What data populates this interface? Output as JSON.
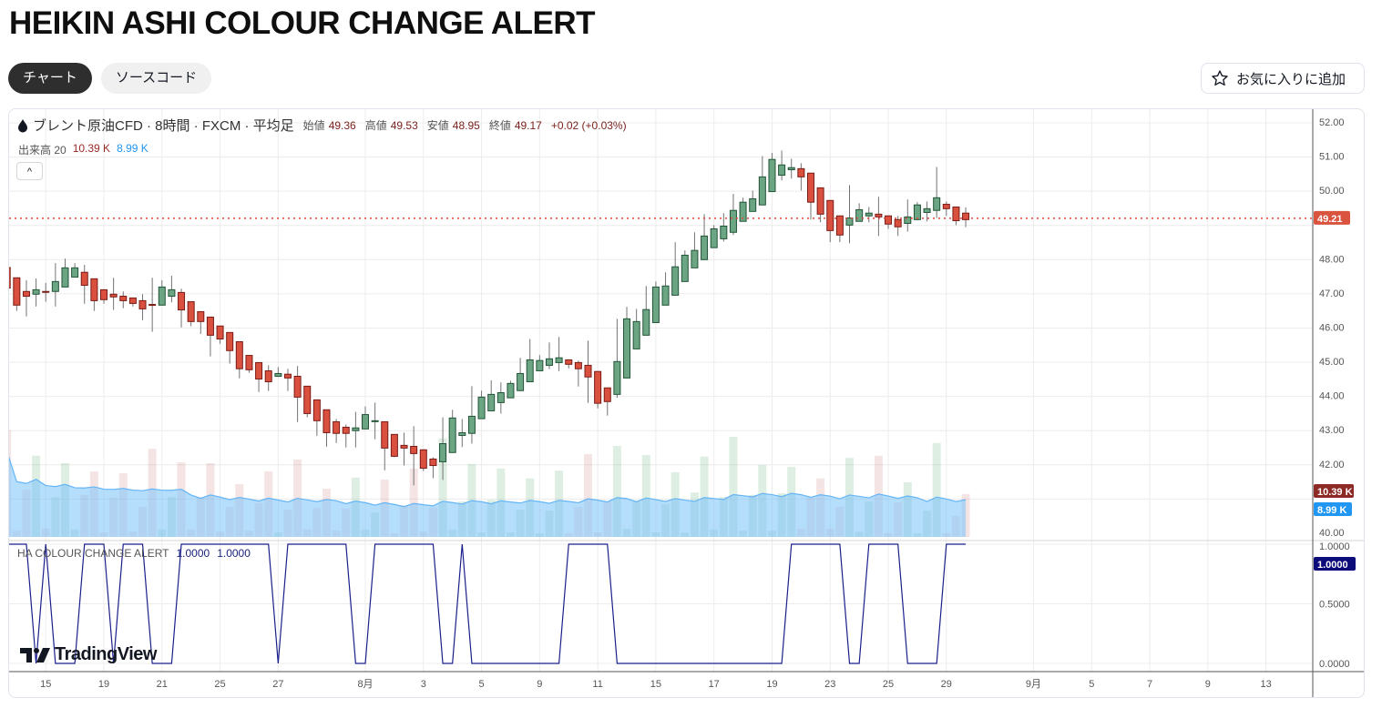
{
  "page_title": "HEIKIN ASHI COLOUR CHANGE ALERT",
  "tabs": [
    {
      "label": "チャート",
      "active": true
    },
    {
      "label": "ソースコード",
      "active": false
    }
  ],
  "favorite_button": {
    "label": "お気に入りに追加",
    "icon": "star-icon"
  },
  "legend": {
    "symbol": "ブレント原油CFD · 8時間 · FXCM · 平均足",
    "open_label": "始値",
    "open": "49.36",
    "high_label": "高値",
    "high": "49.53",
    "low_label": "安値",
    "low": "48.95",
    "close_label": "終値",
    "close": "49.17",
    "change": "+0.02 (+0.03%)"
  },
  "volume_legend": {
    "label": "出来高 20",
    "volume": "10.39 K",
    "ma": "8.99 K"
  },
  "indicator_legend": {
    "name": "HA COLOUR CHANGE ALERT",
    "value1": "1.0000",
    "value2": "1.0000"
  },
  "watermark": "TradingView",
  "colors": {
    "up": "#6ba583",
    "up_border": "#225437",
    "down": "#d9503f",
    "down_border": "#7a1b15",
    "wick": "#737375",
    "price_line": "#e0453a",
    "volume_label": "#8e2a25",
    "ma_label": "#2196f3",
    "alert_line": "#1a1f8c",
    "alert_label": "#0b0b7a"
  },
  "chart_data": {
    "type": "candlestick",
    "price_axis": {
      "ticks": [
        "52.00",
        "51.00",
        "50.00",
        "48.00",
        "47.00",
        "46.00",
        "45.00",
        "44.00",
        "43.00",
        "42.00",
        "40.00"
      ],
      "range": [
        40,
        52
      ]
    },
    "current_price": "49.21",
    "volume_label": "10.39 K",
    "volume_ma_label": "8.99 K",
    "indicator_axis": {
      "ticks": [
        "1.0000",
        "0.5000",
        "0.0000"
      ],
      "current": "1.0000"
    },
    "time_labels": [
      {
        "text": "15",
        "index": 4
      },
      {
        "text": "19",
        "index": 10
      },
      {
        "text": "21",
        "index": 16
      },
      {
        "text": "25",
        "index": 22
      },
      {
        "text": "27",
        "index": 28
      },
      {
        "text": "8月",
        "index": 37
      },
      {
        "text": "3",
        "index": 43
      },
      {
        "text": "5",
        "index": 49
      },
      {
        "text": "9",
        "index": 55
      },
      {
        "text": "11",
        "index": 61
      },
      {
        "text": "15",
        "index": 67
      },
      {
        "text": "17",
        "index": 73
      },
      {
        "text": "19",
        "index": 79
      },
      {
        "text": "23",
        "index": 85
      },
      {
        "text": "25",
        "index": 91
      },
      {
        "text": "29",
        "index": 97
      },
      {
        "text": "9月",
        "index": 106
      },
      {
        "text": "5",
        "index": 112
      },
      {
        "text": "7",
        "index": 118
      },
      {
        "text": "9",
        "index": 124
      },
      {
        "text": "13",
        "index": 130
      }
    ],
    "ohlc": [
      [
        47.77,
        47.85,
        47.17,
        47.17
      ],
      [
        47.47,
        47.47,
        46.5,
        46.67
      ],
      [
        47.07,
        47.4,
        46.34,
        46.93
      ],
      [
        46.99,
        47.45,
        46.63,
        47.12
      ],
      [
        47.07,
        47.32,
        46.77,
        47.065
      ],
      [
        47.07,
        47.9,
        46.63,
        47.36
      ],
      [
        47.2,
        48.03,
        47.2,
        47.76
      ],
      [
        47.49,
        47.9,
        47.49,
        47.76
      ],
      [
        47.63,
        47.85,
        46.71,
        47.25
      ],
      [
        47.44,
        47.44,
        46.5,
        46.8
      ],
      [
        47.12,
        47.12,
        46.71,
        46.83
      ],
      [
        46.99,
        47.47,
        46.53,
        46.91
      ],
      [
        46.93,
        47.07,
        46.58,
        46.8
      ],
      [
        46.88,
        46.88,
        46.63,
        46.72
      ],
      [
        46.8,
        46.99,
        46.23,
        46.56
      ],
      [
        46.69,
        47.47,
        45.89,
        46.685
      ],
      [
        46.67,
        47.4,
        46.67,
        47.2
      ],
      [
        46.93,
        47.53,
        46.75,
        47.12
      ],
      [
        47.04,
        47.15,
        46.02,
        46.53
      ],
      [
        46.77,
        46.77,
        46.05,
        46.19
      ],
      [
        46.48,
        46.48,
        45.83,
        46.19
      ],
      [
        46.32,
        46.32,
        45.17,
        45.79
      ],
      [
        46.06,
        46.06,
        45.54,
        45.68
      ],
      [
        45.87,
        45.87,
        44.96,
        45.34
      ],
      [
        45.6,
        45.6,
        44.53,
        44.81
      ],
      [
        45.2,
        45.2,
        44.69,
        44.78
      ],
      [
        44.99,
        44.99,
        44.13,
        44.51
      ],
      [
        44.75,
        44.91,
        44.16,
        44.43
      ],
      [
        44.59,
        44.86,
        44.57,
        44.67
      ],
      [
        44.65,
        44.81,
        44.16,
        44.54
      ],
      [
        44.59,
        44.89,
        43.25,
        43.98
      ],
      [
        44.3,
        44.3,
        43.39,
        43.5
      ],
      [
        43.9,
        43.9,
        42.85,
        43.29
      ],
      [
        43.61,
        43.61,
        42.53,
        42.94
      ],
      [
        43.26,
        43.34,
        42.64,
        42.92
      ],
      [
        43.1,
        43.18,
        42.51,
        42.92
      ],
      [
        43.0,
        43.55,
        42.51,
        43.08
      ],
      [
        43.05,
        43.71,
        43.05,
        43.47
      ],
      [
        43.285,
        43.82,
        42.75,
        43.29
      ],
      [
        43.26,
        43.26,
        41.84,
        42.49
      ],
      [
        42.89,
        42.89,
        42.22,
        42.25
      ],
      [
        42.57,
        42.94,
        41.98,
        42.49
      ],
      [
        42.54,
        43.13,
        41.4,
        42.33
      ],
      [
        42.44,
        42.44,
        41.82,
        41.9
      ],
      [
        42.17,
        42.22,
        41.61,
        41.98
      ],
      [
        42.09,
        43.39,
        41.56,
        42.62
      ],
      [
        42.36,
        43.61,
        42.36,
        43.37
      ],
      [
        42.86,
        43.34,
        42.52,
        42.94
      ],
      [
        42.92,
        44.3,
        42.62,
        43.42
      ],
      [
        43.35,
        44.17,
        43.35,
        43.98
      ],
      [
        43.58,
        44.47,
        43.58,
        44.06
      ],
      [
        43.82,
        44.41,
        43.5,
        44.11
      ],
      [
        43.96,
        44.46,
        43.96,
        44.38
      ],
      [
        44.17,
        45.13,
        44.17,
        44.67
      ],
      [
        44.43,
        45.68,
        44.43,
        45.07
      ],
      [
        44.75,
        45.21,
        44.75,
        45.05
      ],
      [
        44.91,
        45.58,
        44.8,
        45.1
      ],
      [
        44.99,
        45.74,
        44.74,
        45.13
      ],
      [
        45.07,
        45.07,
        44.82,
        44.94
      ],
      [
        44.99,
        45.05,
        44.29,
        44.81
      ],
      [
        44.91,
        45.63,
        43.81,
        44.57
      ],
      [
        44.73,
        44.73,
        43.65,
        43.8
      ],
      [
        44.25,
        44.25,
        43.44,
        43.85
      ],
      [
        44.06,
        46.27,
        43.96,
        45.02
      ],
      [
        44.54,
        46.62,
        44.54,
        46.27
      ],
      [
        45.39,
        46.56,
        45.39,
        46.19
      ],
      [
        45.79,
        47.23,
        45.79,
        46.54
      ],
      [
        46.16,
        47.36,
        46.16,
        47.2
      ],
      [
        46.67,
        47.63,
        46.67,
        47.23
      ],
      [
        46.96,
        48.51,
        46.96,
        47.79
      ],
      [
        47.36,
        48.27,
        47.36,
        48.13
      ],
      [
        47.76,
        48.8,
        47.76,
        48.27
      ],
      [
        48.0,
        49.33,
        48.0,
        48.69
      ],
      [
        48.35,
        49.01,
        48.35,
        48.9
      ],
      [
        48.61,
        49.36,
        48.53,
        48.98
      ],
      [
        48.8,
        49.92,
        48.72,
        49.44
      ],
      [
        49.12,
        49.81,
        49.12,
        49.68
      ],
      [
        49.41,
        50.02,
        49.41,
        49.78
      ],
      [
        49.6,
        51.03,
        49.6,
        50.42
      ],
      [
        49.99,
        51.12,
        49.99,
        50.93
      ],
      [
        50.47,
        51.19,
        50.32,
        50.77
      ],
      [
        50.63,
        50.95,
        50.37,
        50.69
      ],
      [
        50.66,
        50.82,
        50.02,
        50.42
      ],
      [
        50.53,
        50.53,
        49.17,
        49.68
      ],
      [
        50.1,
        50.1,
        49.09,
        49.33
      ],
      [
        49.73,
        49.73,
        48.51,
        48.85
      ],
      [
        49.28,
        49.28,
        48.51,
        48.72
      ],
      [
        49.01,
        50.18,
        48.48,
        49.22
      ],
      [
        49.12,
        49.65,
        49.12,
        49.46
      ],
      [
        49.28,
        49.54,
        49.09,
        49.36
      ],
      [
        49.33,
        49.84,
        48.69,
        49.25
      ],
      [
        49.28,
        49.28,
        48.9,
        49.04
      ],
      [
        49.17,
        49.28,
        48.69,
        48.96
      ],
      [
        49.06,
        49.76,
        48.82,
        49.25
      ],
      [
        49.17,
        49.68,
        49.17,
        49.6
      ],
      [
        49.38,
        49.7,
        49.12,
        49.49
      ],
      [
        49.44,
        50.71,
        49.22,
        49.81
      ],
      [
        49.62,
        49.7,
        49.28,
        49.49
      ],
      [
        49.54,
        49.54,
        49.01,
        49.14
      ],
      [
        49.36,
        49.53,
        48.95,
        49.17
      ]
    ],
    "volume_k": [
      25.9,
      1.5,
      11.5,
      19.7,
      2.0,
      9.7,
      17.9,
      1.8,
      10.2,
      15.9,
      1.1,
      9.5,
      15.5,
      1.3,
      7.3,
      21.4,
      1.8,
      9.7,
      18.1,
      1.8,
      9.7,
      17.9,
      1.3,
      7.3,
      12.8,
      1.5,
      8.2,
      15.9,
      1.1,
      6.6,
      18.8,
      1.8,
      7.1,
      11.7,
      1.5,
      6.9,
      14.4,
      1.8,
      6.0,
      13.9,
      0.9,
      7.7,
      16.6,
      1.3,
      7.1,
      23.9,
      1.8,
      8.6,
      17.7,
      1.1,
      9.0,
      16.6,
      1.1,
      6.6,
      14.2,
      0.9,
      6.4,
      16.1,
      0.9,
      7.3,
      20.1,
      1.1,
      8.6,
      22.1,
      2.0,
      8.8,
      19.9,
      1.1,
      8.0,
      15.7,
      1.1,
      10.8,
      19.5,
      1.8,
      9.7,
      24.3,
      1.5,
      10.2,
      17.5,
      1.5,
      10.6,
      17.0,
      2.0,
      9.7,
      14.2,
      2.0,
      7.3,
      19.2,
      1.3,
      8.6,
      19.7,
      0.9,
      8.4,
      13.3,
      0.9,
      6.4,
      22.8,
      0.9,
      5.1,
      10.4
    ],
    "volume_ma_period": 20,
    "alert": [
      1,
      1,
      1,
      0,
      1,
      0,
      0,
      0,
      1,
      1,
      1,
      0,
      1,
      1,
      1,
      0,
      0,
      0,
      1,
      1,
      1,
      1,
      1,
      1,
      1,
      1,
      1,
      1,
      0,
      1,
      1,
      1,
      1,
      1,
      1,
      1,
      0,
      0,
      1,
      1,
      1,
      1,
      1,
      1,
      1,
      0,
      0,
      1,
      0,
      0,
      0,
      0,
      0,
      0,
      0,
      0,
      0,
      0,
      1,
      1,
      1,
      1,
      1,
      0,
      0,
      0,
      0,
      0,
      0,
      0,
      0,
      0,
      0,
      0,
      0,
      0,
      0,
      0,
      0,
      0,
      0,
      1,
      1,
      1,
      1,
      1,
      1,
      0,
      0,
      1,
      1,
      1,
      1,
      0,
      0,
      0,
      0,
      1,
      1,
      1
    ]
  }
}
